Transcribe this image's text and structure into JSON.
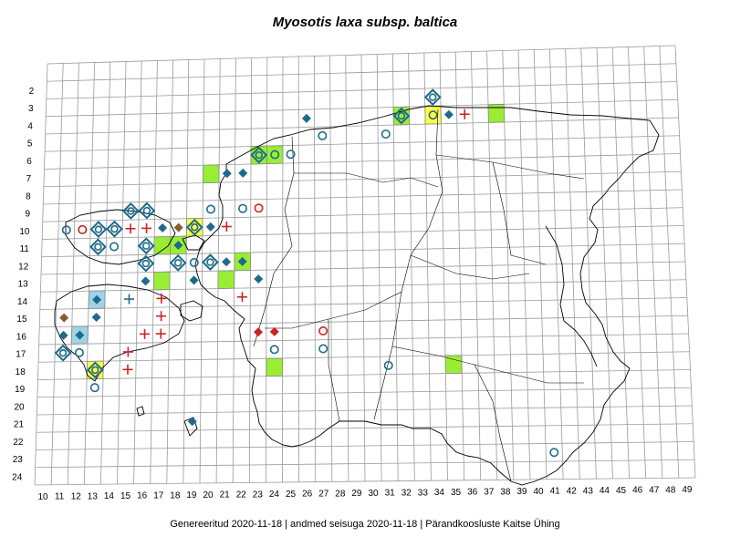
{
  "title": "Myosotis laxa subsp. baltica",
  "footer": "Genereeritud 2020-11-18  |  andmed seisuga 2020-11-18  |  Pärandkoosluste Kaitse Ühing",
  "grid": {
    "x_labels": [
      "10",
      "11",
      "12",
      "13",
      "14",
      "15",
      "16",
      "17",
      "18",
      "19",
      "20",
      "21",
      "22",
      "23",
      "24",
      "25",
      "26",
      "27",
      "28",
      "29",
      "30",
      "31",
      "32",
      "33",
      "34",
      "35",
      "36",
      "37",
      "38",
      "39",
      "40",
      "41",
      "42",
      "43",
      "44",
      "45",
      "46",
      "47",
      "48",
      "49"
    ],
    "y_labels": [
      "2",
      "3",
      "4",
      "5",
      "6",
      "7",
      "8",
      "9",
      "10",
      "11",
      "12",
      "13",
      "14",
      "15",
      "16",
      "17",
      "18",
      "19",
      "20",
      "21",
      "22",
      "23",
      "24"
    ]
  },
  "colors": {
    "grid": "#9a9a9a",
    "border": "#000000",
    "marker_blue": "#1f6a8a",
    "marker_red": "#cc2222",
    "marker_brown": "#8b5a2b",
    "cell_green": "#99ee33",
    "cell_yellow": "#ffff44",
    "cell_lightblue": "#9fd3e8"
  },
  "cells": [
    {
      "col": "20",
      "row": "7",
      "fill": "green"
    },
    {
      "col": "23",
      "row": "6",
      "fill": "green"
    },
    {
      "col": "24",
      "row": "6",
      "fill": "green"
    },
    {
      "col": "32",
      "row": "4",
      "fill": "green"
    },
    {
      "col": "34",
      "row": "4",
      "fill": "yellow"
    },
    {
      "col": "38",
      "row": "4",
      "fill": "green"
    },
    {
      "col": "19",
      "row": "10",
      "fill": "yellow"
    },
    {
      "col": "17",
      "row": "11",
      "fill": "green"
    },
    {
      "col": "18",
      "row": "11",
      "fill": "green"
    },
    {
      "col": "22",
      "row": "12",
      "fill": "green"
    },
    {
      "col": "17",
      "row": "13",
      "fill": "green"
    },
    {
      "col": "21",
      "row": "13",
      "fill": "green"
    },
    {
      "col": "13",
      "row": "14",
      "fill": "lightblue"
    },
    {
      "col": "12",
      "row": "16",
      "fill": "lightblue"
    },
    {
      "col": "13",
      "row": "18",
      "fill": "yellow"
    },
    {
      "col": "24",
      "row": "18",
      "fill": "green"
    },
    {
      "col": "35",
      "row": "18",
      "fill": "green"
    }
  ],
  "markers": [
    {
      "col": "34",
      "row": "3",
      "type": "diamond-outline",
      "color": "blue"
    },
    {
      "col": "32",
      "row": "4",
      "type": "diamond-outline",
      "color": "blue"
    },
    {
      "col": "34",
      "row": "4",
      "type": "circle",
      "color": "blue"
    },
    {
      "col": "35",
      "row": "4",
      "type": "diamond",
      "color": "blue"
    },
    {
      "col": "36",
      "row": "4",
      "type": "plus",
      "color": "red"
    },
    {
      "col": "26",
      "row": "4",
      "type": "diamond",
      "color": "blue"
    },
    {
      "col": "27",
      "row": "5",
      "type": "circle",
      "color": "blue"
    },
    {
      "col": "31",
      "row": "5",
      "type": "circle",
      "color": "blue"
    },
    {
      "col": "23",
      "row": "6",
      "type": "diamond-outline",
      "color": "blue"
    },
    {
      "col": "24",
      "row": "6",
      "type": "circle",
      "color": "blue"
    },
    {
      "col": "25",
      "row": "6",
      "type": "circle",
      "color": "blue"
    },
    {
      "col": "21",
      "row": "7",
      "type": "diamond",
      "color": "blue"
    },
    {
      "col": "22",
      "row": "7",
      "type": "diamond",
      "color": "blue"
    },
    {
      "col": "15",
      "row": "9",
      "type": "diamond-outline",
      "color": "blue"
    },
    {
      "col": "16",
      "row": "9",
      "type": "diamond-outline",
      "color": "blue"
    },
    {
      "col": "20",
      "row": "9",
      "type": "circle",
      "color": "blue"
    },
    {
      "col": "22",
      "row": "9",
      "type": "circle",
      "color": "blue"
    },
    {
      "col": "23",
      "row": "9",
      "type": "circle",
      "color": "red"
    },
    {
      "col": "11",
      "row": "10",
      "type": "circle",
      "color": "blue"
    },
    {
      "col": "12",
      "row": "10",
      "type": "circle",
      "color": "red"
    },
    {
      "col": "13",
      "row": "10",
      "type": "diamond-outline",
      "color": "blue"
    },
    {
      "col": "14",
      "row": "10",
      "type": "diamond-outline",
      "color": "blue"
    },
    {
      "col": "15",
      "row": "10",
      "type": "plus",
      "color": "red"
    },
    {
      "col": "16",
      "row": "10",
      "type": "plus",
      "color": "red"
    },
    {
      "col": "17",
      "row": "10",
      "type": "diamond",
      "color": "blue"
    },
    {
      "col": "18",
      "row": "10",
      "type": "diamond",
      "color": "brown"
    },
    {
      "col": "19",
      "row": "10",
      "type": "diamond-outline",
      "color": "blue"
    },
    {
      "col": "20",
      "row": "10",
      "type": "diamond",
      "color": "blue"
    },
    {
      "col": "21",
      "row": "10",
      "type": "plus",
      "color": "red"
    },
    {
      "col": "13",
      "row": "11",
      "type": "diamond-outline",
      "color": "blue"
    },
    {
      "col": "14",
      "row": "11",
      "type": "circle",
      "color": "blue"
    },
    {
      "col": "16",
      "row": "11",
      "type": "diamond-outline",
      "color": "blue"
    },
    {
      "col": "18",
      "row": "11",
      "type": "diamond",
      "color": "blue"
    },
    {
      "col": "16",
      "row": "12",
      "type": "diamond-outline",
      "color": "blue"
    },
    {
      "col": "18",
      "row": "12",
      "type": "diamond-outline",
      "color": "blue"
    },
    {
      "col": "19",
      "row": "12",
      "type": "circle",
      "color": "blue"
    },
    {
      "col": "20",
      "row": "12",
      "type": "diamond-outline",
      "color": "blue"
    },
    {
      "col": "21",
      "row": "12",
      "type": "diamond",
      "color": "blue"
    },
    {
      "col": "22",
      "row": "12",
      "type": "diamond",
      "color": "blue"
    },
    {
      "col": "16",
      "row": "13",
      "type": "diamond",
      "color": "blue"
    },
    {
      "col": "19",
      "row": "13",
      "type": "diamond",
      "color": "blue"
    },
    {
      "col": "23",
      "row": "13",
      "type": "diamond",
      "color": "blue"
    },
    {
      "col": "13",
      "row": "14",
      "type": "diamond",
      "color": "blue"
    },
    {
      "col": "15",
      "row": "14",
      "type": "plus",
      "color": "blue"
    },
    {
      "col": "17",
      "row": "14",
      "type": "plus",
      "color": "red"
    },
    {
      "col": "22",
      "row": "14",
      "type": "plus",
      "color": "red"
    },
    {
      "col": "11",
      "row": "15",
      "type": "diamond",
      "color": "brown"
    },
    {
      "col": "13",
      "row": "15",
      "type": "diamond",
      "color": "blue"
    },
    {
      "col": "17",
      "row": "15",
      "type": "plus",
      "color": "red"
    },
    {
      "col": "11",
      "row": "16",
      "type": "diamond",
      "color": "blue"
    },
    {
      "col": "12",
      "row": "16",
      "type": "diamond",
      "color": "blue"
    },
    {
      "col": "16",
      "row": "16",
      "type": "plus",
      "color": "red"
    },
    {
      "col": "17",
      "row": "16",
      "type": "plus",
      "color": "red"
    },
    {
      "col": "23",
      "row": "16",
      "type": "diamond",
      "color": "red"
    },
    {
      "col": "24",
      "row": "16",
      "type": "diamond",
      "color": "red"
    },
    {
      "col": "27",
      "row": "16",
      "type": "circle",
      "color": "red"
    },
    {
      "col": "11",
      "row": "17",
      "type": "diamond-outline",
      "color": "blue"
    },
    {
      "col": "12",
      "row": "17",
      "type": "circle",
      "color": "blue"
    },
    {
      "col": "15",
      "row": "17",
      "type": "plus",
      "color": "red"
    },
    {
      "col": "24",
      "row": "17",
      "type": "circle",
      "color": "blue"
    },
    {
      "col": "27",
      "row": "17",
      "type": "circle",
      "color": "blue"
    },
    {
      "col": "13",
      "row": "18",
      "type": "diamond-outline",
      "color": "blue"
    },
    {
      "col": "15",
      "row": "18",
      "type": "plus",
      "color": "red"
    },
    {
      "col": "31",
      "row": "18",
      "type": "circle",
      "color": "blue"
    },
    {
      "col": "13",
      "row": "19",
      "type": "circle",
      "color": "blue"
    },
    {
      "col": "19",
      "row": "21",
      "type": "diamond",
      "color": "blue"
    },
    {
      "col": "41",
      "row": "23",
      "type": "circle",
      "color": "blue"
    }
  ]
}
